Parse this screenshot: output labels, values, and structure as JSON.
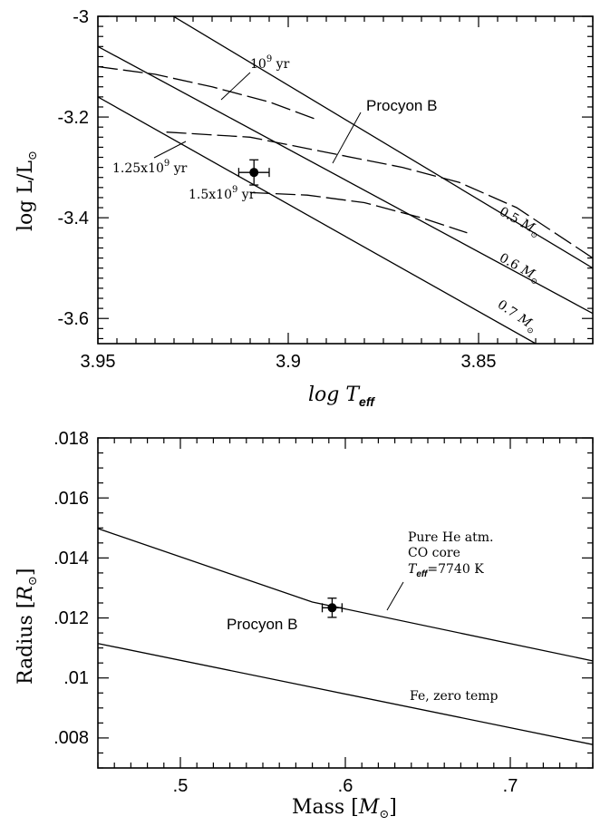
{
  "chart_data": [
    {
      "type": "line",
      "xlabel": "log  T_eff",
      "ylabel": "log  L/L_⊙",
      "xlim": [
        3.95,
        3.82
      ],
      "ylim": [
        -3.65,
        -3.0
      ],
      "x_ticks": [
        "3.95",
        "3.9",
        "3.85"
      ],
      "y_ticks": [
        "-3",
        "-3.2",
        "-3.4",
        "-3.6"
      ],
      "series": [
        {
          "name": "0.5 M_⊙",
          "style": "solid",
          "x": [
            3.95,
            3.82
          ],
          "y": [
            -2.91,
            -3.5
          ]
        },
        {
          "name": "0.6 M_⊙",
          "style": "solid",
          "x": [
            3.95,
            3.82
          ],
          "y": [
            -3.06,
            -3.59
          ]
        },
        {
          "name": "0.7 M_⊙",
          "style": "solid",
          "x": [
            3.95,
            3.835
          ],
          "y": [
            -3.16,
            -3.65
          ]
        },
        {
          "name": "10^9 yr",
          "style": "dashed",
          "x": [
            3.95,
            3.935,
            3.92,
            3.905,
            3.8925
          ],
          "y": [
            -3.1,
            -3.115,
            -3.14,
            -3.17,
            -3.205
          ]
        },
        {
          "name": "1.25×10^9 yr",
          "style": "dashed",
          "x": [
            3.932,
            3.91,
            3.89,
            3.87,
            3.855,
            3.84,
            3.82
          ],
          "y": [
            -3.23,
            -3.24,
            -3.27,
            -3.3,
            -3.33,
            -3.38,
            -3.48
          ]
        },
        {
          "name": "1.5×10^9 yr",
          "style": "dashed",
          "x": [
            3.91,
            3.895,
            3.88,
            3.865,
            3.853
          ],
          "y": [
            -3.35,
            -3.355,
            -3.37,
            -3.4,
            -3.43
          ]
        }
      ],
      "points": [
        {
          "label": "Procyon B",
          "x": 3.909,
          "y": -3.31,
          "xerr": 0.004,
          "yerr": 0.025
        }
      ],
      "annotations": [
        {
          "text": "Procyon B"
        },
        {
          "text": "10^9 yr"
        },
        {
          "text": "1.25×10^9 yr"
        },
        {
          "text": "1.5×10^9 yr"
        },
        {
          "text": "0.5 M_⊙"
        },
        {
          "text": "0.6 M_⊙"
        },
        {
          "text": "0.7 M_⊙"
        }
      ]
    },
    {
      "type": "line",
      "xlabel": "Mass [M_⊙]",
      "ylabel": "Radius [R_⊙]",
      "xlim": [
        0.45,
        0.75
      ],
      "ylim": [
        0.007,
        0.018
      ],
      "x_ticks": [
        ".5",
        ".6",
        ".7"
      ],
      "y_ticks": [
        ".018",
        ".016",
        ".014",
        ".012",
        ".01",
        ".008"
      ],
      "series": [
        {
          "name": "Pure He atm. CO core T_eff=7740 K",
          "style": "solid",
          "x": [
            0.45,
            0.58,
            0.75
          ],
          "y": [
            0.01498,
            0.01253,
            0.01057
          ]
        },
        {
          "name": "Fe, zero temp",
          "style": "solid",
          "x": [
            0.45,
            0.75
          ],
          "y": [
            0.01115,
            0.00778
          ]
        }
      ],
      "points": [
        {
          "label": "Procyon B",
          "x": 0.592,
          "y": 0.01234,
          "xerr": 0.006,
          "yerr": 0.00032
        }
      ],
      "annotations": [
        {
          "text": "Procyon B"
        },
        {
          "text": "Pure He atm."
        },
        {
          "text": "CO core"
        },
        {
          "text": "T_eff=7740 K"
        },
        {
          "text": "Fe, zero temp"
        }
      ]
    }
  ],
  "labels": {
    "top_xlabel_main": "log  T",
    "top_xlabel_sub": "eff",
    "top_ylabel_main": "log  L/L",
    "top_ylabel_sun": "⊙",
    "top_procyon": "Procyon B",
    "age1_a": "10",
    "age1_sup": "9",
    "age1_b": " yr",
    "age2_a": "1.25x10",
    "age2_sup": "9",
    "age2_b": " yr",
    "age3_a": "1.5x10",
    "age3_sup": "9",
    "age3_b": " yr",
    "m05_num": "0.5",
    "m06_num": "0.6",
    "m07_num": "0.7",
    "m_letter": "M",
    "m_sun": "⊙",
    "bot_xlabel_a": "Mass [",
    "bot_xlabel_m": "M",
    "bot_xlabel_sun": "⊙",
    "bot_xlabel_b": "]",
    "bot_ylabel_a": "Radius [",
    "bot_ylabel_r": "R",
    "bot_ylabel_sun": "⊙",
    "bot_ylabel_b": "]",
    "bot_procyon": "Procyon B",
    "he_line1": "Pure He atm.",
    "he_line2": "CO core",
    "he_line3_t": "T",
    "he_line3_sub": "eff",
    "he_line3_rest": "=7740 K",
    "fe_label": "Fe, zero temp"
  }
}
